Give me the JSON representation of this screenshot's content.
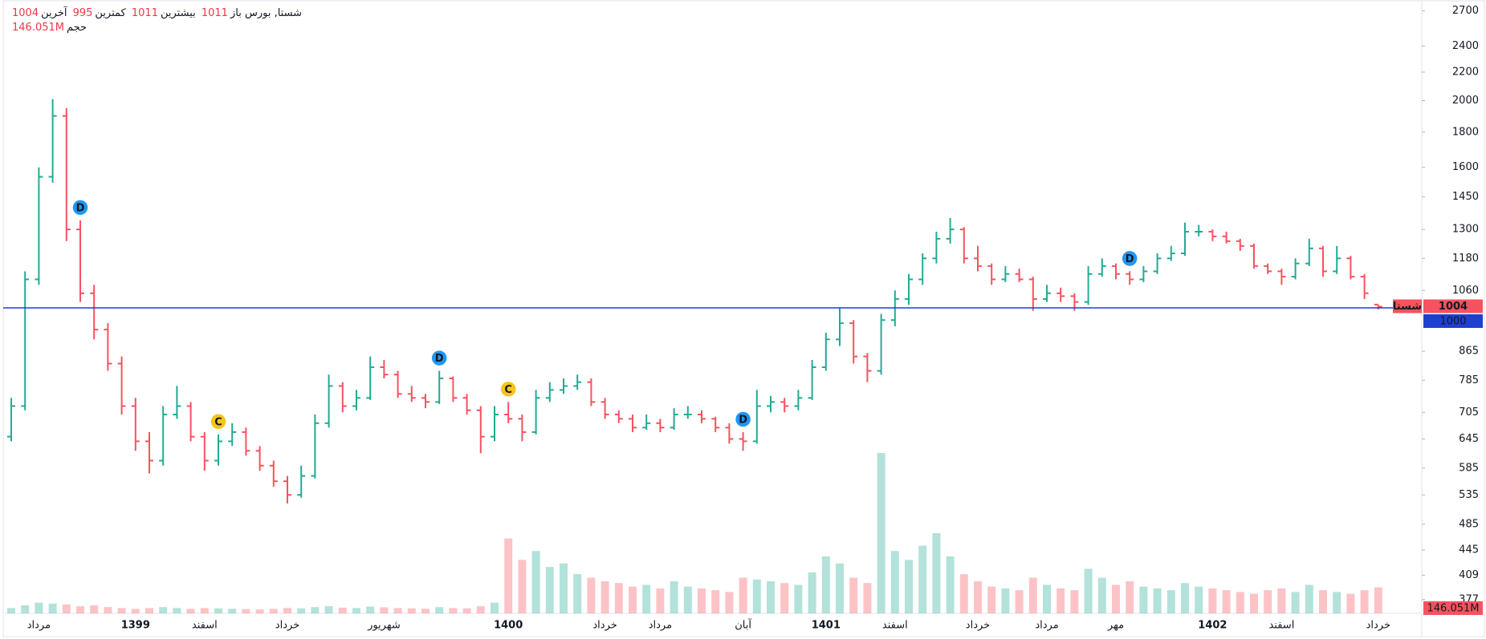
{
  "chart_data": {
    "type": "ohlc",
    "title": "شستا, بورس",
    "symbol_tag": "شستا",
    "legend_labels": {
      "open": "باز",
      "high": "بیشترین",
      "low": "کمترین",
      "close": "آخرین",
      "volume": "حجم"
    },
    "up_color": "#22ab94",
    "down_color": "#f7525f",
    "log_scale": true,
    "ylim": [
      360,
      2800
    ],
    "yticks": [
      2700,
      2400,
      2200,
      2000,
      1800,
      1600,
      1450,
      1300,
      1180,
      1060,
      865,
      785,
      705,
      645,
      585,
      535,
      485,
      445,
      409,
      377
    ],
    "hline": {
      "value": 1000,
      "color": "#1f3fd1"
    },
    "categories": [
      null,
      null,
      "مرداد",
      null,
      null,
      null,
      null,
      null,
      null,
      "1399",
      null,
      null,
      null,
      null,
      "اسفند",
      null,
      null,
      null,
      null,
      null,
      "خرداد",
      null,
      null,
      null,
      null,
      null,
      null,
      "شهریور",
      null,
      null,
      null,
      null,
      null,
      null,
      null,
      null,
      "1400",
      null,
      null,
      null,
      null,
      null,
      null,
      "خرداد",
      null,
      null,
      null,
      "مرداد",
      null,
      null,
      null,
      null,
      null,
      "آبان",
      null,
      null,
      null,
      null,
      null,
      "1401",
      null,
      null,
      null,
      null,
      "اسفند",
      null,
      null,
      null,
      null,
      null,
      "خرداد",
      null,
      null,
      null,
      null,
      "مرداد",
      null,
      null,
      null,
      null,
      "مهر",
      null,
      null,
      null,
      null,
      null,
      null,
      "1402",
      null,
      null,
      null,
      null,
      "اسفند",
      null,
      null,
      null,
      null,
      null,
      null,
      "خرداد"
    ],
    "ohlc": [
      [
        650,
        740,
        640,
        720
      ],
      [
        720,
        1130,
        710,
        1100
      ],
      [
        1100,
        1600,
        1080,
        1550
      ],
      [
        1550,
        2010,
        1520,
        1900
      ],
      [
        1900,
        1950,
        1250,
        1300
      ],
      [
        1300,
        1340,
        1020,
        1050
      ],
      [
        1050,
        1080,
        900,
        930
      ],
      [
        930,
        950,
        810,
        830
      ],
      [
        830,
        850,
        700,
        720
      ],
      [
        720,
        740,
        620,
        640
      ],
      [
        640,
        660,
        575,
        600
      ],
      [
        600,
        720,
        590,
        700
      ],
      [
        700,
        770,
        690,
        720
      ],
      [
        720,
        730,
        640,
        650
      ],
      [
        650,
        660,
        580,
        600
      ],
      [
        600,
        655,
        590,
        640
      ],
      [
        640,
        680,
        630,
        660
      ],
      [
        660,
        670,
        610,
        620
      ],
      [
        620,
        630,
        580,
        590
      ],
      [
        590,
        600,
        550,
        560
      ],
      [
        560,
        570,
        520,
        535
      ],
      [
        535,
        590,
        530,
        570
      ],
      [
        570,
        700,
        565,
        680
      ],
      [
        680,
        800,
        670,
        770
      ],
      [
        770,
        780,
        705,
        720
      ],
      [
        720,
        760,
        710,
        740
      ],
      [
        740,
        850,
        735,
        820
      ],
      [
        820,
        840,
        790,
        800
      ],
      [
        800,
        810,
        740,
        750
      ],
      [
        750,
        770,
        730,
        740
      ],
      [
        740,
        750,
        715,
        730
      ],
      [
        730,
        810,
        725,
        790
      ],
      [
        790,
        795,
        730,
        740
      ],
      [
        740,
        750,
        700,
        710
      ],
      [
        710,
        720,
        615,
        650
      ],
      [
        650,
        720,
        640,
        700
      ],
      [
        700,
        730,
        680,
        690
      ],
      [
        690,
        700,
        640,
        660
      ],
      [
        660,
        760,
        655,
        740
      ],
      [
        740,
        780,
        730,
        760
      ],
      [
        760,
        790,
        750,
        770
      ],
      [
        770,
        800,
        760,
        780
      ],
      [
        780,
        790,
        720,
        730
      ],
      [
        730,
        740,
        690,
        700
      ],
      [
        700,
        710,
        680,
        690
      ],
      [
        690,
        700,
        660,
        670
      ],
      [
        670,
        700,
        665,
        680
      ],
      [
        680,
        690,
        660,
        670
      ],
      [
        670,
        715,
        665,
        700
      ],
      [
        700,
        720,
        690,
        700
      ],
      [
        700,
        710,
        680,
        690
      ],
      [
        690,
        695,
        660,
        670
      ],
      [
        670,
        680,
        635,
        645
      ],
      [
        645,
        660,
        620,
        640
      ],
      [
        640,
        760,
        635,
        720
      ],
      [
        720,
        745,
        705,
        730
      ],
      [
        730,
        740,
        705,
        720
      ],
      [
        720,
        760,
        710,
        740
      ],
      [
        740,
        840,
        735,
        820
      ],
      [
        820,
        920,
        810,
        900
      ],
      [
        900,
        1000,
        880,
        950
      ],
      [
        950,
        960,
        830,
        850
      ],
      [
        850,
        860,
        780,
        810
      ],
      [
        810,
        980,
        800,
        960
      ],
      [
        960,
        1060,
        940,
        1030
      ],
      [
        1030,
        1120,
        1010,
        1100
      ],
      [
        1100,
        1200,
        1080,
        1180
      ],
      [
        1180,
        1290,
        1160,
        1260
      ],
      [
        1260,
        1350,
        1240,
        1300
      ],
      [
        1300,
        1310,
        1160,
        1180
      ],
      [
        1180,
        1230,
        1130,
        1150
      ],
      [
        1150,
        1160,
        1080,
        1100
      ],
      [
        1100,
        1150,
        1090,
        1120
      ],
      [
        1120,
        1140,
        1090,
        1100
      ],
      [
        1100,
        1110,
        990,
        1030
      ],
      [
        1030,
        1080,
        1020,
        1050
      ],
      [
        1050,
        1070,
        1020,
        1040
      ],
      [
        1040,
        1050,
        990,
        1020
      ],
      [
        1020,
        1150,
        1010,
        1120
      ],
      [
        1120,
        1180,
        1110,
        1150
      ],
      [
        1150,
        1160,
        1100,
        1120
      ],
      [
        1120,
        1130,
        1080,
        1100
      ],
      [
        1100,
        1150,
        1090,
        1130
      ],
      [
        1130,
        1200,
        1120,
        1180
      ],
      [
        1180,
        1230,
        1170,
        1200
      ],
      [
        1200,
        1330,
        1190,
        1290
      ],
      [
        1290,
        1320,
        1270,
        1290
      ],
      [
        1290,
        1300,
        1250,
        1270
      ],
      [
        1270,
        1290,
        1240,
        1250
      ],
      [
        1250,
        1260,
        1210,
        1230
      ],
      [
        1230,
        1240,
        1140,
        1150
      ],
      [
        1150,
        1160,
        1120,
        1130
      ],
      [
        1130,
        1140,
        1080,
        1110
      ],
      [
        1110,
        1180,
        1100,
        1160
      ],
      [
        1160,
        1260,
        1150,
        1220
      ],
      [
        1220,
        1230,
        1110,
        1130
      ],
      [
        1130,
        1230,
        1120,
        1180
      ],
      [
        1180,
        1190,
        1100,
        1110
      ],
      [
        1110,
        1120,
        1030,
        1050
      ],
      [
        1011,
        1011,
        995,
        1004
      ]
    ],
    "volume": {
      "values": [
        30000000,
        45000000,
        60000000,
        55000000,
        50000000,
        40000000,
        45000000,
        35000000,
        30000000,
        25000000,
        30000000,
        35000000,
        30000000,
        25000000,
        30000000,
        28000000,
        26000000,
        24000000,
        22000000,
        25000000,
        30000000,
        28000000,
        35000000,
        40000000,
        32000000,
        30000000,
        38000000,
        34000000,
        30000000,
        28000000,
        26000000,
        35000000,
        30000000,
        28000000,
        40000000,
        60000000,
        420000000,
        300000000,
        350000000,
        260000000,
        280000000,
        220000000,
        200000000,
        180000000,
        170000000,
        150000000,
        160000000,
        140000000,
        180000000,
        150000000,
        140000000,
        130000000,
        120000000,
        200000000,
        190000000,
        180000000,
        170000000,
        160000000,
        230000000,
        320000000,
        280000000,
        200000000,
        170000000,
        900000000,
        350000000,
        300000000,
        380000000,
        450000000,
        320000000,
        220000000,
        180000000,
        150000000,
        140000000,
        130000000,
        200000000,
        160000000,
        140000000,
        130000000,
        250000000,
        200000000,
        160000000,
        180000000,
        150000000,
        140000000,
        130000000,
        170000000,
        150000000,
        140000000,
        130000000,
        120000000,
        110000000,
        130000000,
        140000000,
        120000000,
        160000000,
        130000000,
        120000000,
        110000000,
        130000000,
        146051000
      ],
      "last_label": "146.051M"
    },
    "events": [
      {
        "index": 5,
        "label": "D",
        "color": "#2196f3"
      },
      {
        "index": 15,
        "label": "C",
        "color": "#f5c518"
      },
      {
        "index": 31,
        "label": "D",
        "color": "#2196f3"
      },
      {
        "index": 36,
        "label": "C",
        "color": "#f5c518"
      },
      {
        "index": 53,
        "label": "D",
        "color": "#2196f3"
      },
      {
        "index": 81,
        "label": "D",
        "color": "#2196f3"
      }
    ]
  }
}
